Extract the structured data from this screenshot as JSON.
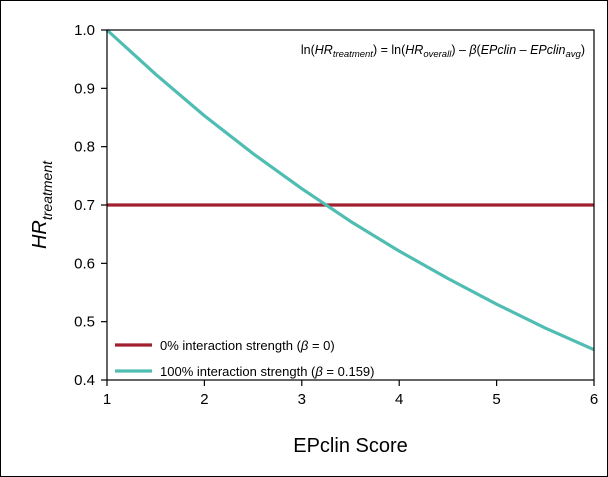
{
  "chart_data": {
    "type": "line",
    "xlabel": "EPclin Score",
    "ylabel": {
      "main": "HR",
      "sub": "treatment"
    },
    "xlim": [
      1,
      6
    ],
    "ylim": [
      0.4,
      1.0
    ],
    "xticks": [
      1,
      2,
      3,
      4,
      5,
      6
    ],
    "yticks": [
      0.4,
      0.5,
      0.6,
      0.7,
      0.8,
      0.9,
      1.0
    ],
    "ytick_labels": [
      "0.4",
      "0.5",
      "0.6",
      "0.7",
      "0.8",
      "0.9",
      "1.0"
    ],
    "grid": false,
    "legend_position": "bottom-left",
    "annotation": {
      "parts": [
        {
          "t": "ln(",
          "style": "normal",
          "shift": "none"
        },
        {
          "t": "HR",
          "style": "italic",
          "shift": "none"
        },
        {
          "t": "treatment",
          "style": "italic",
          "shift": "sub"
        },
        {
          "t": ") = ln(",
          "style": "normal",
          "shift": "none"
        },
        {
          "t": "HR",
          "style": "italic",
          "shift": "none"
        },
        {
          "t": "overall",
          "style": "italic",
          "shift": "sub"
        },
        {
          "t": ") – ",
          "style": "normal",
          "shift": "none"
        },
        {
          "t": "β",
          "style": "italic",
          "shift": "none"
        },
        {
          "t": "(",
          "style": "normal",
          "shift": "none"
        },
        {
          "t": "EPclin",
          "style": "italic",
          "shift": "none"
        },
        {
          "t": " – ",
          "style": "normal",
          "shift": "none"
        },
        {
          "t": "EPclin",
          "style": "italic",
          "shift": "none"
        },
        {
          "t": "avg",
          "style": "italic",
          "shift": "sub"
        },
        {
          "t": ")",
          "style": "normal",
          "shift": "none"
        }
      ]
    },
    "series": [
      {
        "name": "0% interaction strength (β = 0)",
        "name_parts": [
          {
            "t": "0% interaction strength (",
            "style": "normal"
          },
          {
            "t": "β",
            "style": "italic"
          },
          {
            "t": " = 0)",
            "style": "normal"
          }
        ],
        "color": "#a0202f",
        "x": [
          1,
          2,
          3,
          4,
          5,
          6
        ],
        "y": [
          0.7,
          0.7,
          0.7,
          0.7,
          0.7,
          0.7
        ]
      },
      {
        "name": "100% interaction strength (β = 0.159)",
        "name_parts": [
          {
            "t": "100% interaction strength (",
            "style": "normal"
          },
          {
            "t": "β",
            "style": "italic"
          },
          {
            "t": " = 0.159)",
            "style": "normal"
          }
        ],
        "color": "#4fbdb2",
        "x": [
          1,
          1.5,
          2,
          2.5,
          3,
          3.5,
          4,
          4.5,
          5,
          5.5,
          6
        ],
        "y": [
          1.0,
          0.924,
          0.853,
          0.788,
          0.728,
          0.672,
          0.621,
          0.574,
          0.53,
          0.489,
          0.452
        ]
      }
    ]
  }
}
